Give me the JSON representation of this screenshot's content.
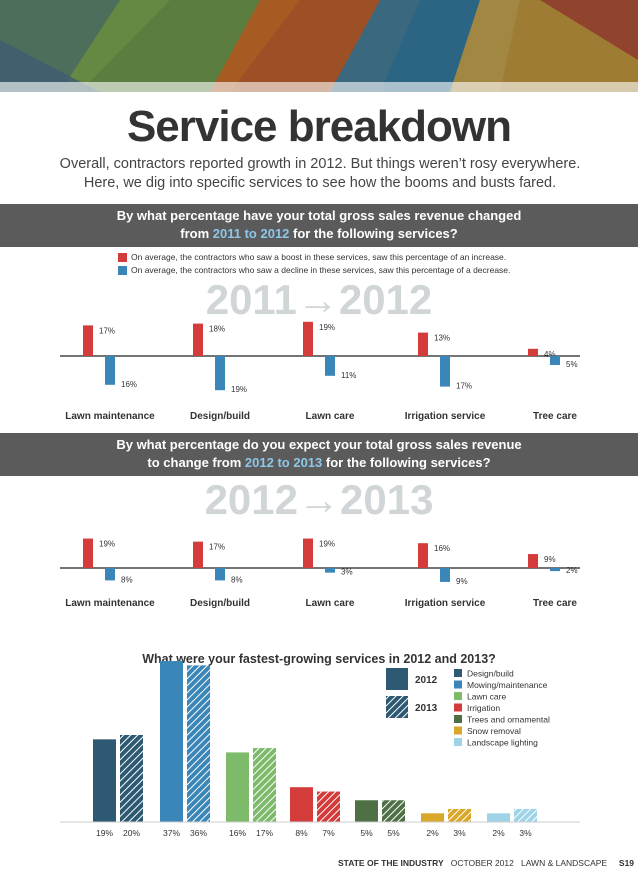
{
  "title": "Service breakdown",
  "subtitle_line1": "Overall, contractors reported growth in 2012. But things weren’t rosy everywhere.",
  "subtitle_line2": "Here, we dig into specific services to see how the booms and busts fared.",
  "q1": {
    "line1": "By what percentage have your total gross sales revenue changed",
    "line2_pre": "from ",
    "line2_hl": "2011 to 2012",
    "line2_post": " for the following services?"
  },
  "legend_increase": "On average, the contractors who saw a boost in these services, saw this percentage of an increase.",
  "legend_decrease": "On average, the contractors who saw a decline in these services, saw this percentage of a decrease.",
  "q2": {
    "line1": "By what percentage do you expect your total gross sales revenue",
    "line2_pre": "to change from ",
    "line2_hl": "2012 to 2013",
    "line2_post": " for the following services?"
  },
  "q3": "What were your fastest-growing services in 2012 and 2013?",
  "footer": {
    "section": "STATE OF THE INDUSTRY",
    "issue": "OCTOBER 2012",
    "magazine": "LAWN & LANDSCAPE",
    "page": "S19"
  },
  "colors": {
    "increase": "#d43b3b",
    "decrease": "#3a86b8",
    "banner": "#5b5b5b",
    "axis": "#222222"
  },
  "chart_data": [
    {
      "type": "bar",
      "title": "2011→2012",
      "categories": [
        "Lawn maintenance",
        "Design/build",
        "Lawn care",
        "Irrigation service",
        "Tree care"
      ],
      "series": [
        {
          "name": "Increase",
          "values": [
            17,
            18,
            19,
            13,
            4
          ],
          "labels": [
            "17%",
            "18%",
            "19%",
            "13%",
            "4%"
          ]
        },
        {
          "name": "Decrease",
          "values": [
            16,
            19,
            11,
            17,
            5
          ],
          "labels": [
            "16%",
            "19%",
            "11%",
            "17%",
            "5%"
          ]
        }
      ]
    },
    {
      "type": "bar",
      "title": "2012→2013",
      "categories": [
        "Lawn maintenance",
        "Design/build",
        "Lawn care",
        "Irrigation service",
        "Tree care"
      ],
      "series": [
        {
          "name": "Increase",
          "values": [
            19,
            17,
            19,
            16,
            9
          ],
          "labels": [
            "19%",
            "17%",
            "19%",
            "16%",
            "9%"
          ]
        },
        {
          "name": "Decrease",
          "values": [
            8,
            8,
            3,
            9,
            2
          ],
          "labels": [
            "8%",
            "8%",
            "3%",
            "9%",
            "2%"
          ]
        }
      ]
    },
    {
      "type": "bar",
      "title": "What were your fastest-growing services in 2012 and 2013?",
      "categories": [
        "Design/build",
        "Mowing/maintenance",
        "Lawn care",
        "Irrigation",
        "Trees and ornamental",
        "Snow removal",
        "Landscape lighting"
      ],
      "category_colors": [
        "#2d5a72",
        "#3a86b8",
        "#7dbb6a",
        "#d43b3b",
        "#4f7044",
        "#d9a82a",
        "#9fd3e8"
      ],
      "series": [
        {
          "name": "2012",
          "values": [
            19,
            37,
            16,
            8,
            5,
            2,
            2
          ],
          "labels": [
            "19%",
            "37%",
            "16%",
            "8%",
            "5%",
            "2%",
            "2%"
          ]
        },
        {
          "name": "2013",
          "values": [
            20,
            36,
            17,
            7,
            5,
            3,
            3
          ],
          "labels": [
            "20%",
            "36%",
            "17%",
            "7%",
            "5%",
            "3%",
            "3%"
          ]
        }
      ],
      "legend_years": [
        "2012",
        "2013"
      ]
    }
  ]
}
